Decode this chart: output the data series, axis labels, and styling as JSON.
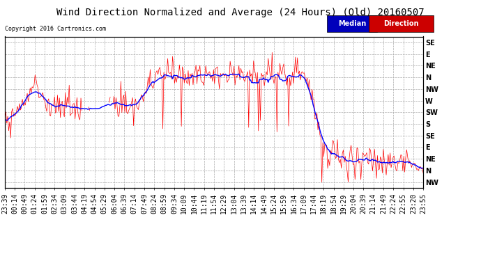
{
  "title": "Wind Direction Normalized and Average (24 Hours) (Old) 20160507",
  "copyright": "Copyright 2016 Cartronics.com",
  "legend_median": "Median",
  "legend_direction": "Direction",
  "legend_median_bg": "#0000bb",
  "legend_direction_bg": "#cc0000",
  "ytick_labels": [
    "SE",
    "E",
    "NE",
    "N",
    "NW",
    "W",
    "SW",
    "S",
    "SE",
    "E",
    "NE",
    "N",
    "NW"
  ],
  "ytick_values": [
    0,
    1,
    2,
    3,
    4,
    5,
    6,
    7,
    8,
    9,
    10,
    11,
    12
  ],
  "background_color": "#ffffff",
  "plot_bg_color": "#ffffff",
  "grid_color": "#aaaaaa",
  "title_fontsize": 10,
  "tick_fontsize": 7,
  "red_color": "#ff0000",
  "blue_color": "#0000ff",
  "black_color": "#000000",
  "xtick_labels": [
    "23:39",
    "00:14",
    "00:49",
    "01:24",
    "01:59",
    "02:34",
    "03:09",
    "03:44",
    "04:19",
    "04:54",
    "05:29",
    "06:04",
    "06:39",
    "07:14",
    "07:49",
    "08:24",
    "08:59",
    "09:34",
    "10:09",
    "10:44",
    "11:19",
    "11:54",
    "12:29",
    "13:04",
    "13:39",
    "14:14",
    "14:49",
    "15:24",
    "15:59",
    "16:34",
    "17:09",
    "17:44",
    "18:19",
    "18:54",
    "19:29",
    "20:04",
    "20:39",
    "21:14",
    "21:49",
    "22:24",
    "22:55",
    "23:20",
    "23:55"
  ]
}
